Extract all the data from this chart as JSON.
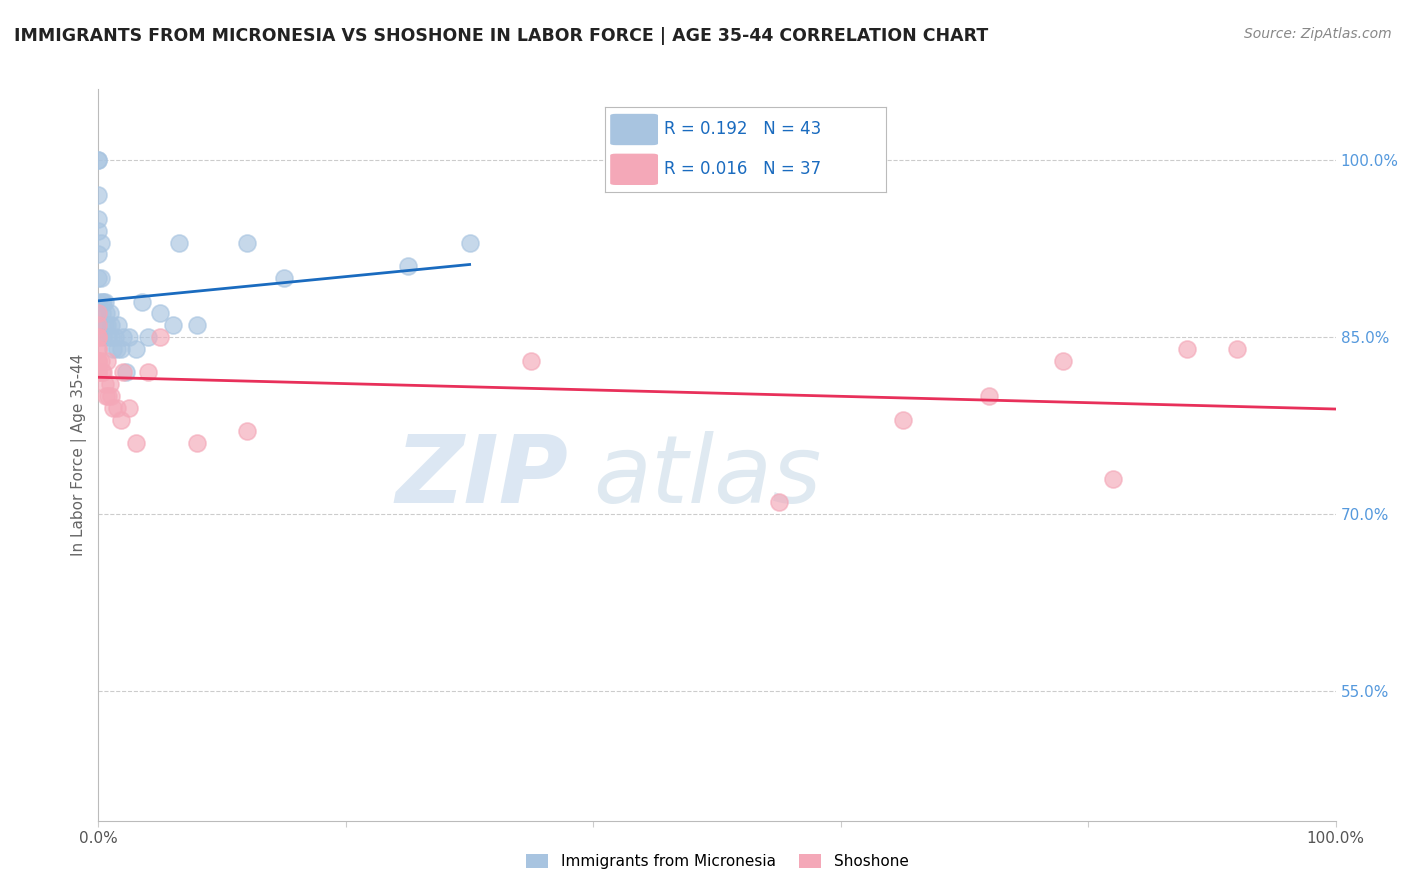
{
  "title": "IMMIGRANTS FROM MICRONESIA VS SHOSHONE IN LABOR FORCE | AGE 35-44 CORRELATION CHART",
  "source_text": "Source: ZipAtlas.com",
  "ylabel": "In Labor Force | Age 35-44",
  "xlim": [
    0.0,
    1.0
  ],
  "ylim": [
    0.44,
    1.06
  ],
  "y_tick_labels_right": [
    "55.0%",
    "70.0%",
    "85.0%",
    "100.0%"
  ],
  "y_tick_vals_right": [
    0.55,
    0.7,
    0.85,
    1.0
  ],
  "micronesia_color": "#a8c4e0",
  "shoshone_color": "#f4a8b8",
  "trend_micronesia_color": "#1a6bbf",
  "trend_shoshone_color": "#e8305a",
  "watermark_zip": "ZIP",
  "watermark_atlas": "atlas",
  "micronesia_x": [
    0.0,
    0.0,
    0.0,
    0.0,
    0.0,
    0.0,
    0.0,
    0.0,
    0.0,
    0.0,
    0.002,
    0.002,
    0.003,
    0.003,
    0.004,
    0.004,
    0.005,
    0.005,
    0.006,
    0.007,
    0.008,
    0.009,
    0.01,
    0.01,
    0.012,
    0.013,
    0.015,
    0.016,
    0.018,
    0.02,
    0.022,
    0.025,
    0.03,
    0.035,
    0.04,
    0.05,
    0.06,
    0.065,
    0.08,
    0.12,
    0.15,
    0.25,
    0.3
  ],
  "micronesia_y": [
    1.0,
    1.0,
    0.97,
    0.95,
    0.94,
    0.92,
    0.9,
    0.88,
    0.87,
    0.86,
    0.93,
    0.9,
    0.88,
    0.87,
    0.88,
    0.85,
    0.88,
    0.86,
    0.87,
    0.86,
    0.85,
    0.87,
    0.86,
    0.85,
    0.84,
    0.85,
    0.84,
    0.86,
    0.84,
    0.85,
    0.82,
    0.85,
    0.84,
    0.88,
    0.85,
    0.87,
    0.86,
    0.93,
    0.86,
    0.93,
    0.9,
    0.91,
    0.93
  ],
  "shoshone_x": [
    0.0,
    0.0,
    0.0,
    0.0,
    0.0,
    0.0,
    0.0,
    0.0,
    0.0,
    0.0,
    0.002,
    0.003,
    0.004,
    0.005,
    0.006,
    0.007,
    0.008,
    0.009,
    0.01,
    0.012,
    0.015,
    0.018,
    0.02,
    0.025,
    0.03,
    0.04,
    0.05,
    0.08,
    0.12,
    0.35,
    0.55,
    0.65,
    0.72,
    0.78,
    0.82,
    0.88,
    0.92
  ],
  "shoshone_y": [
    0.87,
    0.86,
    0.85,
    0.84,
    0.83,
    0.82,
    0.84,
    0.85,
    0.83,
    0.82,
    0.83,
    0.82,
    0.82,
    0.81,
    0.8,
    0.83,
    0.8,
    0.81,
    0.8,
    0.79,
    0.79,
    0.78,
    0.82,
    0.79,
    0.76,
    0.82,
    0.85,
    0.76,
    0.77,
    0.83,
    0.71,
    0.78,
    0.8,
    0.83,
    0.73,
    0.84,
    0.84
  ]
}
